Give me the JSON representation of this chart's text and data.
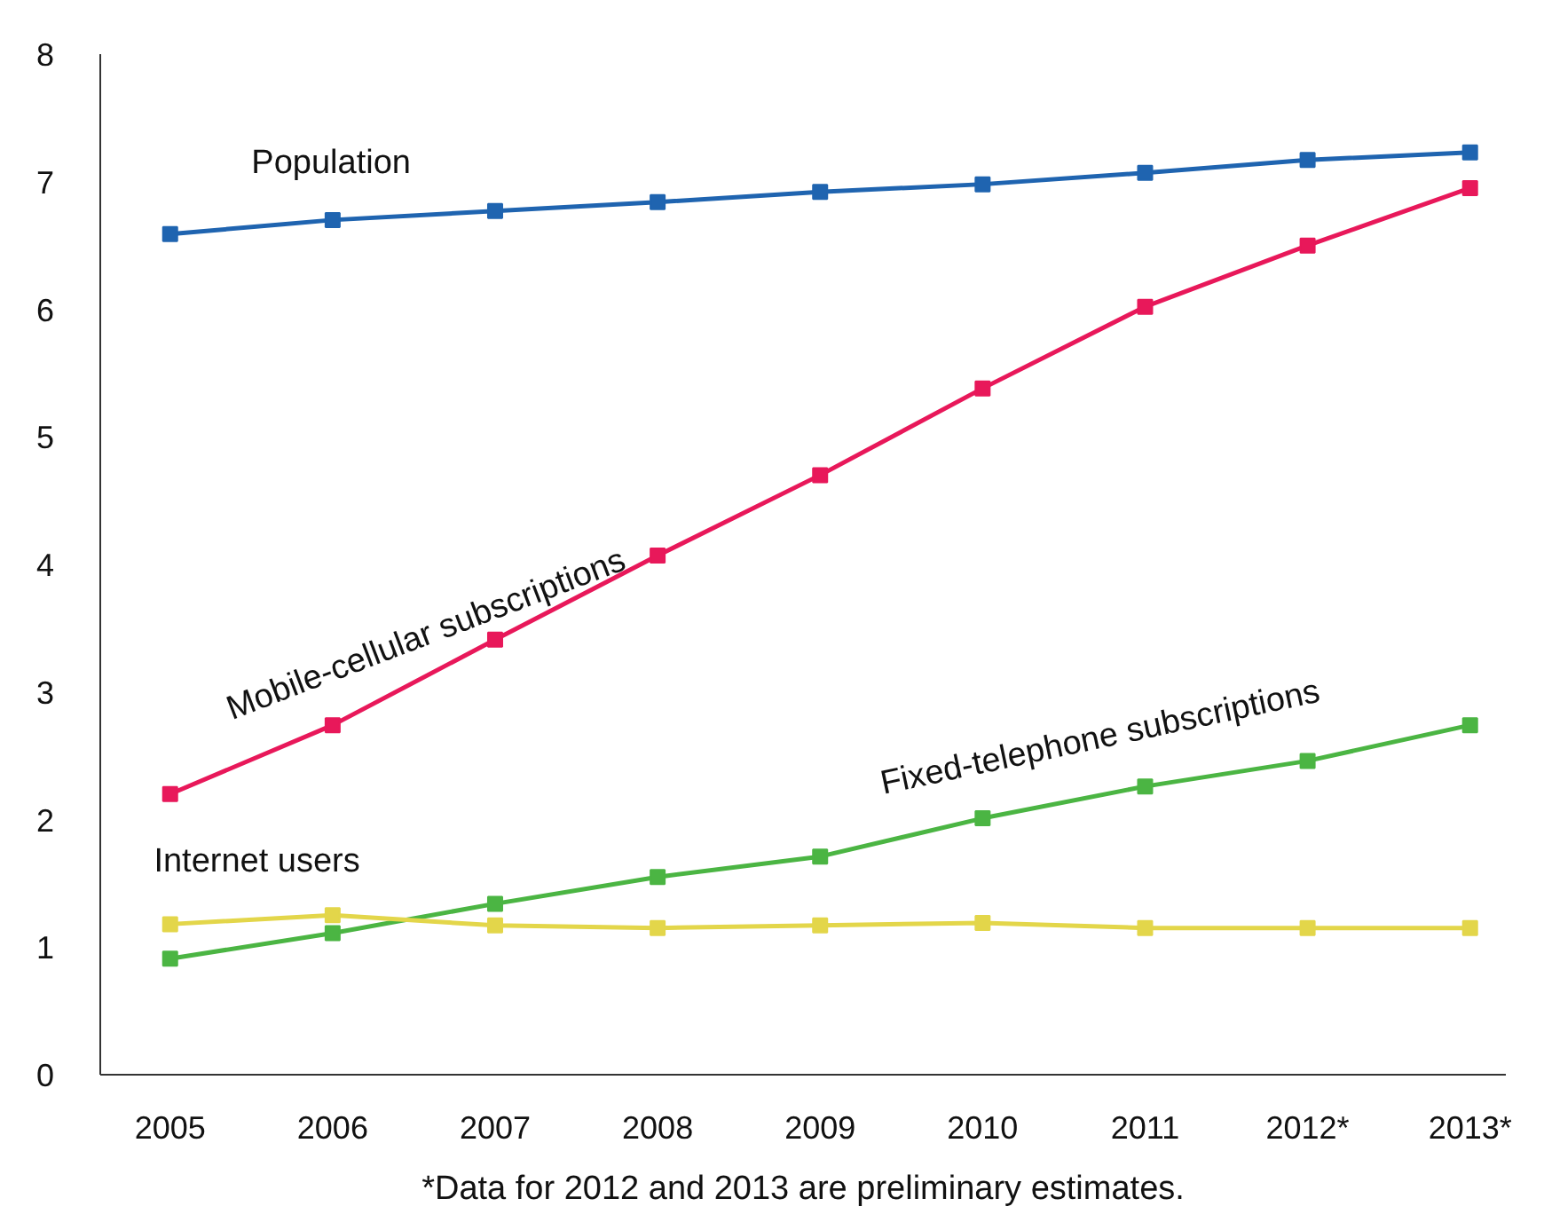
{
  "chart_data": {
    "type": "line",
    "categories": [
      "2005",
      "2006",
      "2007",
      "2008",
      "2009",
      "2010",
      "2011",
      "2012*",
      "2013*"
    ],
    "series": [
      {
        "name": "Population",
        "color": "#1f64b0",
        "values": [
          6.59,
          6.7,
          6.77,
          6.84,
          6.92,
          6.98,
          7.07,
          7.17,
          7.23
        ]
      },
      {
        "name": "Mobile-cellular subscriptions",
        "color": "#e8185a",
        "values": [
          2.2,
          2.74,
          3.41,
          4.07,
          4.7,
          5.38,
          6.02,
          6.5,
          6.95
        ]
      },
      {
        "name": "Fixed-telephone subscriptions",
        "color": "#4bb543",
        "values": [
          0.91,
          1.11,
          1.34,
          1.55,
          1.71,
          2.01,
          2.26,
          2.46,
          2.74
        ]
      },
      {
        "name": "Internet users",
        "color": "#e3d64a",
        "values": [
          1.18,
          1.25,
          1.17,
          1.15,
          1.17,
          1.19,
          1.15,
          1.15,
          1.15
        ]
      }
    ],
    "ylim": [
      0,
      8
    ],
    "yticks": [
      0,
      1,
      2,
      3,
      4,
      5,
      6,
      7,
      8
    ],
    "grid": false,
    "marker": "square",
    "line_style": "solid",
    "annotations": [
      "*Data for 2012 and 2013 are preliminary estimates."
    ]
  }
}
